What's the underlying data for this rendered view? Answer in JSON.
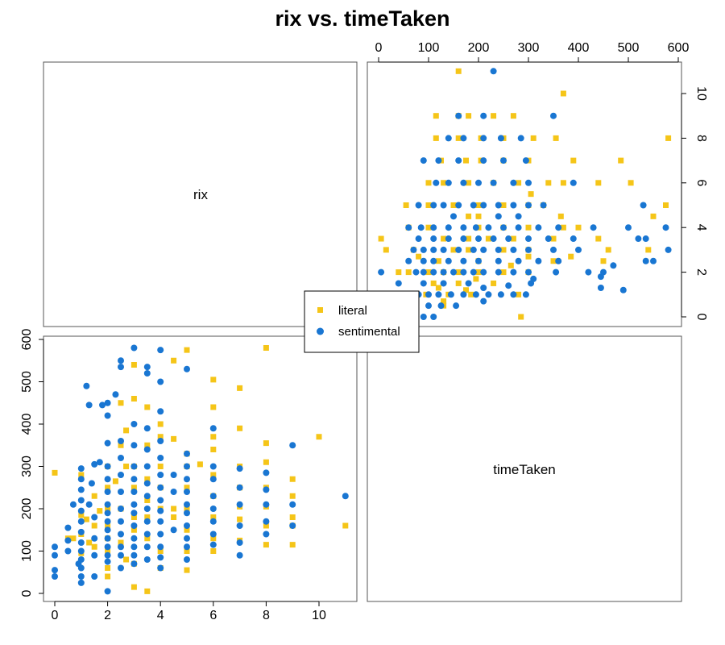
{
  "chart_data": {
    "type": "scatter",
    "title": "rix vs. timeTaken",
    "variables": [
      "rix",
      "timeTaken"
    ],
    "timeTaken_axis": {
      "range": [
        0,
        600
      ],
      "ticks": [
        0,
        100,
        200,
        300,
        400,
        500,
        600
      ]
    },
    "rix_axis": {
      "range": [
        0,
        11
      ],
      "ticks": [
        0,
        2,
        4,
        6,
        8,
        10
      ]
    },
    "legend": {
      "placement": "center",
      "entries": [
        "literal",
        "sentimental"
      ]
    },
    "grid": false,
    "colors": {
      "literal": "#F5C518",
      "sentimental": "#1976D2"
    },
    "series": [
      {
        "name": "literal",
        "marker": "square",
        "color": "#F5C518",
        "points": [
          [
            0.0,
            285
          ],
          [
            0.5,
            130
          ],
          [
            0.7,
            130
          ],
          [
            1.0,
            280
          ],
          [
            1.0,
            185
          ],
          [
            1.0,
            140
          ],
          [
            1.0,
            95
          ],
          [
            1.2,
            175
          ],
          [
            1.3,
            120
          ],
          [
            1.5,
            230
          ],
          [
            1.5,
            160
          ],
          [
            1.5,
            110
          ],
          [
            1.7,
            195
          ],
          [
            2.0,
            300
          ],
          [
            2.0,
            250
          ],
          [
            2.0,
            200
          ],
          [
            2.0,
            160
          ],
          [
            2.0,
            130
          ],
          [
            2.0,
            100
          ],
          [
            2.0,
            60
          ],
          [
            2.0,
            40
          ],
          [
            2.3,
            265
          ],
          [
            2.5,
            450
          ],
          [
            2.5,
            350
          ],
          [
            2.5,
            200
          ],
          [
            2.5,
            120
          ],
          [
            2.7,
            385
          ],
          [
            2.7,
            300
          ],
          [
            2.7,
            80
          ],
          [
            3.0,
            540
          ],
          [
            3.0,
            460
          ],
          [
            3.0,
            300
          ],
          [
            3.0,
            250
          ],
          [
            3.0,
            180
          ],
          [
            3.0,
            150
          ],
          [
            3.0,
            70
          ],
          [
            3.0,
            15
          ],
          [
            3.5,
            440
          ],
          [
            3.5,
            350
          ],
          [
            3.5,
            270
          ],
          [
            3.5,
            220
          ],
          [
            3.5,
            180
          ],
          [
            3.5,
            130
          ],
          [
            3.5,
            5
          ],
          [
            4.0,
            400
          ],
          [
            4.0,
            370
          ],
          [
            4.0,
            300
          ],
          [
            4.0,
            250
          ],
          [
            4.0,
            200
          ],
          [
            4.0,
            100
          ],
          [
            4.0,
            60
          ],
          [
            4.5,
            365
          ],
          [
            4.5,
            200
          ],
          [
            4.5,
            180
          ],
          [
            4.5,
            550
          ],
          [
            5.0,
            575
          ],
          [
            5.0,
            330
          ],
          [
            5.0,
            300
          ],
          [
            5.0,
            250
          ],
          [
            5.0,
            200
          ],
          [
            5.0,
            150
          ],
          [
            5.0,
            100
          ],
          [
            5.0,
            55
          ],
          [
            5.5,
            305
          ],
          [
            6.0,
            505
          ],
          [
            6.0,
            440
          ],
          [
            6.0,
            370
          ],
          [
            6.0,
            340
          ],
          [
            6.0,
            280
          ],
          [
            6.0,
            230
          ],
          [
            6.0,
            180
          ],
          [
            6.0,
            130
          ],
          [
            6.0,
            100
          ],
          [
            7.0,
            485
          ],
          [
            7.0,
            390
          ],
          [
            7.0,
            300
          ],
          [
            7.0,
            250
          ],
          [
            7.0,
            205
          ],
          [
            7.0,
            175
          ],
          [
            7.0,
            125
          ],
          [
            8.0,
            580
          ],
          [
            8.0,
            355
          ],
          [
            8.0,
            310
          ],
          [
            8.0,
            250
          ],
          [
            8.0,
            205
          ],
          [
            8.0,
            160
          ],
          [
            8.0,
            115
          ],
          [
            9.0,
            270
          ],
          [
            9.0,
            230
          ],
          [
            9.0,
            180
          ],
          [
            9.0,
            160
          ],
          [
            9.0,
            115
          ],
          [
            10.0,
            370
          ],
          [
            11.0,
            160
          ]
        ]
      },
      {
        "name": "sentimental",
        "marker": "circle",
        "color": "#1976D2",
        "points": [
          [
            0.0,
            110
          ],
          [
            0.0,
            90
          ],
          [
            0.0,
            55
          ],
          [
            0.0,
            40
          ],
          [
            0.5,
            155
          ],
          [
            0.5,
            125
          ],
          [
            0.5,
            100
          ],
          [
            0.7,
            210
          ],
          [
            0.9,
            70
          ],
          [
            1.0,
            295
          ],
          [
            1.0,
            270
          ],
          [
            1.0,
            245
          ],
          [
            1.0,
            220
          ],
          [
            1.0,
            195
          ],
          [
            1.0,
            170
          ],
          [
            1.0,
            145
          ],
          [
            1.0,
            120
          ],
          [
            1.0,
            100
          ],
          [
            1.0,
            80
          ],
          [
            1.0,
            60
          ],
          [
            1.0,
            40
          ],
          [
            1.0,
            25
          ],
          [
            1.2,
            490
          ],
          [
            1.3,
            445
          ],
          [
            1.3,
            210
          ],
          [
            1.4,
            260
          ],
          [
            1.5,
            305
          ],
          [
            1.5,
            180
          ],
          [
            1.5,
            130
          ],
          [
            1.5,
            90
          ],
          [
            1.5,
            40
          ],
          [
            1.7,
            310
          ],
          [
            1.8,
            445
          ],
          [
            2.0,
            450
          ],
          [
            2.0,
            420
          ],
          [
            2.0,
            355
          ],
          [
            2.0,
            300
          ],
          [
            2.0,
            270
          ],
          [
            2.0,
            240
          ],
          [
            2.0,
            210
          ],
          [
            2.0,
            190
          ],
          [
            2.0,
            170
          ],
          [
            2.0,
            150
          ],
          [
            2.0,
            130
          ],
          [
            2.0,
            110
          ],
          [
            2.0,
            90
          ],
          [
            2.0,
            75
          ],
          [
            2.0,
            5
          ],
          [
            2.3,
            470
          ],
          [
            2.5,
            550
          ],
          [
            2.5,
            535
          ],
          [
            2.5,
            360
          ],
          [
            2.5,
            320
          ],
          [
            2.5,
            280
          ],
          [
            2.5,
            240
          ],
          [
            2.5,
            200
          ],
          [
            2.5,
            170
          ],
          [
            2.5,
            140
          ],
          [
            2.5,
            110
          ],
          [
            2.5,
            90
          ],
          [
            2.5,
            60
          ],
          [
            3.0,
            580
          ],
          [
            3.0,
            400
          ],
          [
            3.0,
            350
          ],
          [
            3.0,
            300
          ],
          [
            3.0,
            270
          ],
          [
            3.0,
            240
          ],
          [
            3.0,
            210
          ],
          [
            3.0,
            190
          ],
          [
            3.0,
            160
          ],
          [
            3.0,
            130
          ],
          [
            3.0,
            110
          ],
          [
            3.0,
            90
          ],
          [
            3.0,
            70
          ],
          [
            3.5,
            535
          ],
          [
            3.5,
            520
          ],
          [
            3.5,
            390
          ],
          [
            3.5,
            340
          ],
          [
            3.5,
            300
          ],
          [
            3.5,
            260
          ],
          [
            3.5,
            230
          ],
          [
            3.5,
            200
          ],
          [
            3.5,
            170
          ],
          [
            3.5,
            140
          ],
          [
            3.5,
            110
          ],
          [
            3.5,
            80
          ],
          [
            4.0,
            575
          ],
          [
            4.0,
            500
          ],
          [
            4.0,
            430
          ],
          [
            4.0,
            360
          ],
          [
            4.0,
            320
          ],
          [
            4.0,
            280
          ],
          [
            4.0,
            250
          ],
          [
            4.0,
            220
          ],
          [
            4.0,
            195
          ],
          [
            4.0,
            170
          ],
          [
            4.0,
            140
          ],
          [
            4.0,
            110
          ],
          [
            4.0,
            85
          ],
          [
            4.0,
            60
          ],
          [
            4.5,
            150
          ],
          [
            4.5,
            240
          ],
          [
            4.5,
            280
          ],
          [
            5.0,
            530
          ],
          [
            5.0,
            330
          ],
          [
            5.0,
            300
          ],
          [
            5.0,
            270
          ],
          [
            5.0,
            240
          ],
          [
            5.0,
            210
          ],
          [
            5.0,
            190
          ],
          [
            5.0,
            160
          ],
          [
            5.0,
            130
          ],
          [
            5.0,
            110
          ],
          [
            5.0,
            80
          ],
          [
            6.0,
            390
          ],
          [
            6.0,
            300
          ],
          [
            6.0,
            270
          ],
          [
            6.0,
            230
          ],
          [
            6.0,
            200
          ],
          [
            6.0,
            170
          ],
          [
            6.0,
            140
          ],
          [
            6.0,
            115
          ],
          [
            7.0,
            295
          ],
          [
            7.0,
            250
          ],
          [
            7.0,
            210
          ],
          [
            7.0,
            160
          ],
          [
            7.0,
            120
          ],
          [
            7.0,
            90
          ],
          [
            8.0,
            285
          ],
          [
            8.0,
            245
          ],
          [
            8.0,
            210
          ],
          [
            8.0,
            170
          ],
          [
            8.0,
            140
          ],
          [
            9.0,
            350
          ],
          [
            9.0,
            210
          ],
          [
            9.0,
            160
          ],
          [
            11.0,
            230
          ]
        ]
      }
    ]
  }
}
